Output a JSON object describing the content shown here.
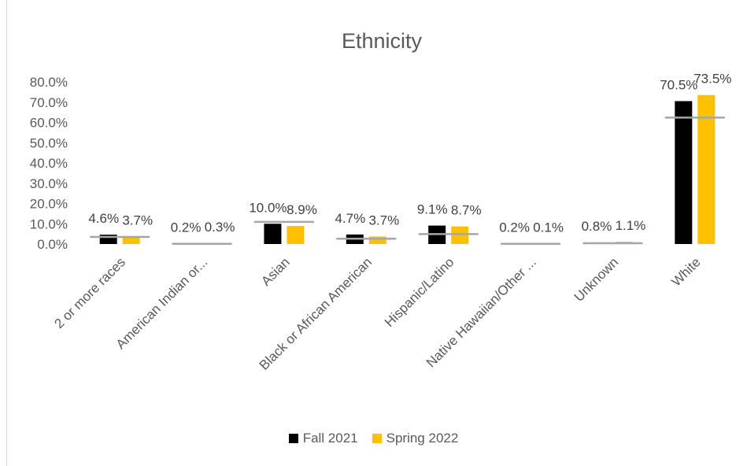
{
  "chart_data": {
    "type": "bar",
    "title": "Ethnicity",
    "categories": [
      "2 or more races",
      "American Indian or...",
      "Asian",
      "Black or African American",
      "Hispanic/Latino",
      "Native Hawaiian/Other ...",
      "Unknown",
      "White"
    ],
    "series": [
      {
        "name": "Fall 2021",
        "color": "#000000",
        "values": [
          4.6,
          0.2,
          10.0,
          4.7,
          9.1,
          0.2,
          0.8,
          70.5
        ],
        "labels": [
          "4.6%",
          "0.2%",
          "10.0%",
          "4.7%",
          "9.1%",
          "0.2%",
          "0.8%",
          "70.5%"
        ]
      },
      {
        "name": "Spring 2022",
        "color": "#FFC000",
        "values": [
          3.7,
          0.3,
          8.9,
          3.7,
          8.7,
          0.1,
          1.1,
          73.5
        ],
        "labels": [
          "3.7%",
          "0.3%",
          "8.9%",
          "3.7%",
          "8.7%",
          "0.1%",
          "1.1%",
          "73.5%"
        ]
      }
    ],
    "reference_values": [
      3.5,
      0.1,
      10.9,
      2.6,
      4.9,
      0.1,
      0.4,
      62.4
    ],
    "reference_color": "#A6A6A6",
    "yticks": [
      "0.0%",
      "10.0%",
      "20.0%",
      "30.0%",
      "40.0%",
      "50.0%",
      "60.0%",
      "70.0%",
      "80.0%"
    ],
    "ylim": [
      0,
      80
    ],
    "legend_position": "bottom"
  }
}
